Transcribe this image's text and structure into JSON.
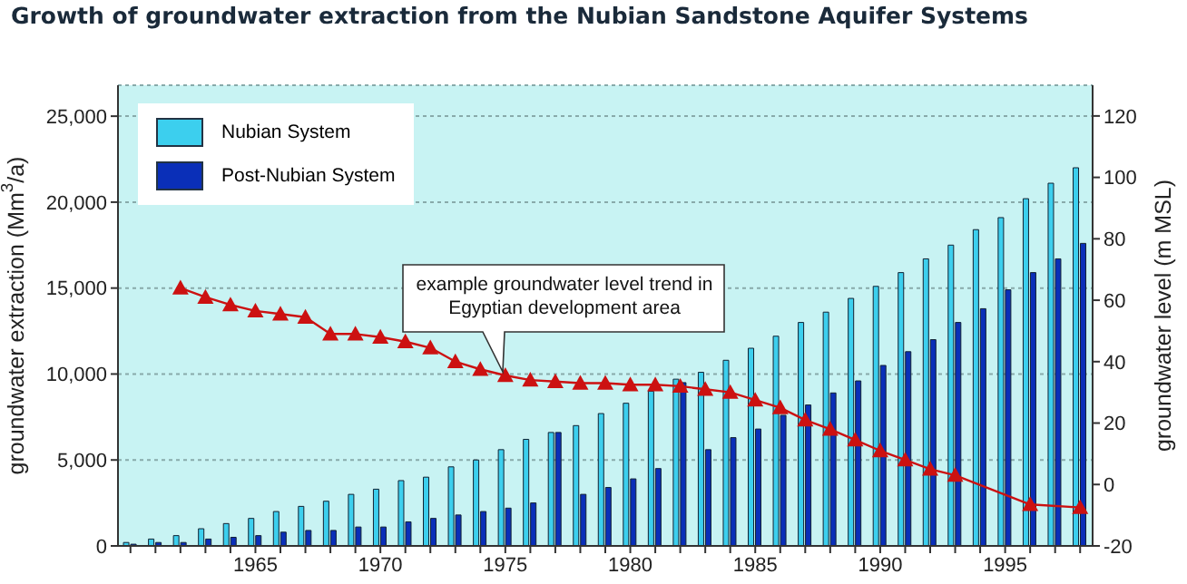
{
  "chart_data": {
    "type": "bar",
    "title": "Growth of groundwater extraction from the Nubian Sandstone Aquifer Systems",
    "ylabel": "groundwater extraction (Mm$^{3}$/a)",
    "y2label": "groundwater level (m MSL)",
    "categories": [
      null,
      null,
      null,
      null,
      null,
      "1965",
      null,
      null,
      null,
      null,
      "1970",
      null,
      null,
      null,
      null,
      "1975",
      null,
      null,
      null,
      null,
      "1980",
      null,
      null,
      null,
      null,
      "1985",
      null,
      null,
      null,
      null,
      "1990",
      null,
      null,
      null,
      null,
      "1995",
      null,
      null,
      null
    ],
    "series": [
      {
        "name": "Nubian System",
        "color": "#3ccfee",
        "values": [
          200,
          400,
          600,
          1000,
          1300,
          1600,
          2000,
          2300,
          2600,
          3000,
          3300,
          3800,
          4000,
          4600,
          5000,
          5600,
          6200,
          6600,
          7000,
          7700,
          8300,
          9000,
          9700,
          10100,
          10800,
          11500,
          12200,
          13000,
          13600,
          14400,
          15100,
          15900,
          16700,
          17500,
          18400,
          19100,
          20200,
          21100,
          22000
        ]
      },
      {
        "name": "Post-Nubian System",
        "color": "#0a2fb8",
        "values": [
          100,
          200,
          200,
          400,
          500,
          600,
          800,
          900,
          900,
          1100,
          1100,
          1400,
          1600,
          1800,
          2000,
          2200,
          2500,
          6600,
          3000,
          3400,
          3900,
          4500,
          9500,
          5600,
          6300,
          6800,
          7600,
          8200,
          8900,
          9600,
          10500,
          11300,
          12000,
          13000,
          13800,
          14900,
          15900,
          16700,
          17600
        ]
      },
      {
        "type": "line",
        "axis": "y2",
        "color": "#cc1111",
        "values": [
          null,
          null,
          64,
          61,
          58.5,
          56.5,
          55.5,
          54.5,
          49,
          49,
          48,
          46.5,
          44.5,
          40,
          37.5,
          35.5,
          34,
          33.5,
          33,
          33,
          32.5,
          32.5,
          32,
          31,
          30,
          27.5,
          25,
          21,
          18,
          14.5,
          11,
          8,
          5,
          3,
          null,
          null,
          -6.5,
          null,
          -7.5
        ]
      }
    ],
    "ylim": [
      0,
      26800
    ],
    "yticks": [
      {
        "value": 0,
        "label": "0"
      },
      {
        "value": 5000,
        "label": "5,000"
      },
      {
        "value": 10000,
        "label": "10,000"
      },
      {
        "value": 15000,
        "label": "15,000"
      },
      {
        "value": 20000,
        "label": "20,000"
      },
      {
        "value": 25000,
        "label": "25,000"
      }
    ],
    "y2lim": [
      -20,
      130
    ],
    "y2ticks": [
      -20,
      0,
      20,
      40,
      60,
      80,
      100,
      120
    ],
    "grid": "y",
    "legend": "top left",
    "marker": "triangle",
    "annotations": [
      "example groundwater level trend in Egyptian development area"
    ]
  }
}
